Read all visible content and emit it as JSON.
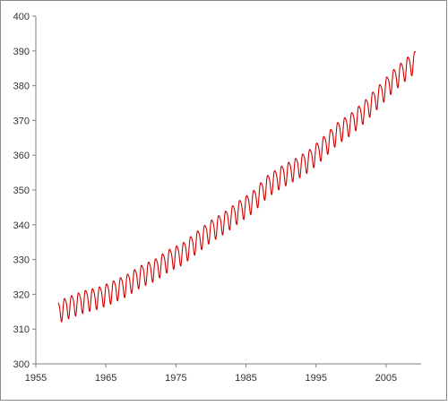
{
  "chart_data": {
    "type": "line",
    "title": "",
    "xlabel": "",
    "ylabel": "",
    "xlim": [
      1955,
      2010
    ],
    "ylim": [
      300,
      400
    ],
    "x_ticks": [
      1955,
      1965,
      1975,
      1985,
      1995,
      2005
    ],
    "y_ticks": [
      300,
      310,
      320,
      330,
      340,
      350,
      360,
      370,
      380,
      390,
      400
    ],
    "grid": false,
    "legend": "none",
    "line_color": "#d00000",
    "trend_points": [
      {
        "x": 1958.2,
        "y": 315.3
      },
      {
        "x": 1960,
        "y": 316.9
      },
      {
        "x": 1962,
        "y": 318.4
      },
      {
        "x": 1964,
        "y": 319.4
      },
      {
        "x": 1966,
        "y": 321.1
      },
      {
        "x": 1968,
        "y": 323.0
      },
      {
        "x": 1970,
        "y": 325.6
      },
      {
        "x": 1972,
        "y": 327.4
      },
      {
        "x": 1974,
        "y": 330.2
      },
      {
        "x": 1976,
        "y": 332.1
      },
      {
        "x": 1978,
        "y": 335.4
      },
      {
        "x": 1980,
        "y": 338.6
      },
      {
        "x": 1982,
        "y": 341.1
      },
      {
        "x": 1984,
        "y": 344.2
      },
      {
        "x": 1986,
        "y": 347.0
      },
      {
        "x": 1988,
        "y": 351.4
      },
      {
        "x": 1990,
        "y": 354.1
      },
      {
        "x": 1992,
        "y": 356.3
      },
      {
        "x": 1994,
        "y": 358.8
      },
      {
        "x": 1996,
        "y": 362.5
      },
      {
        "x": 1998,
        "y": 366.6
      },
      {
        "x": 2000,
        "y": 369.4
      },
      {
        "x": 2002,
        "y": 373.1
      },
      {
        "x": 2004,
        "y": 377.4
      },
      {
        "x": 2006,
        "y": 381.8
      },
      {
        "x": 2008,
        "y": 385.4
      },
      {
        "x": 2009.2,
        "y": 387.3
      }
    ],
    "seasonal_amplitude_ppm": 3.1
  }
}
